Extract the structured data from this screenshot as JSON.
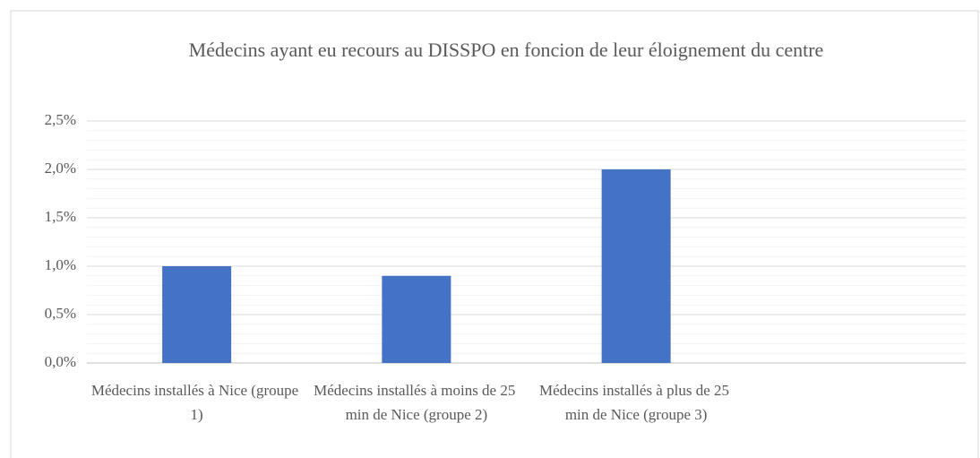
{
  "chart_data": {
    "type": "bar",
    "title": "Médecins ayant eu recours au DISSPO en foncion de leur éloignement du centre",
    "categories": [
      "Médecins installés à Nice (groupe 1)",
      "Médecins installés à moins de 25 min de Nice (groupe 2)",
      "Médecins installés à plus de 25 min de Nice (groupe 3)",
      null
    ],
    "values": [
      1.0,
      0.9,
      2.0,
      null
    ],
    "color": "#4472c4",
    "ylim": [
      0,
      2.5
    ],
    "yticks": [
      {
        "value": 0,
        "label": "0,0%"
      },
      {
        "value": 0.5,
        "label": "0,5%"
      },
      {
        "value": 1.0,
        "label": "1,0%"
      },
      {
        "value": 1.5,
        "label": "1,5%"
      },
      {
        "value": 2.0,
        "label": "2,0%"
      },
      {
        "value": 2.5,
        "label": "2,5%"
      }
    ],
    "minor_yticks": [
      0.1,
      0.2,
      0.3,
      0.4,
      0.6,
      0.7,
      0.8,
      0.9,
      1.1,
      1.2,
      1.3,
      1.4,
      1.6,
      1.7,
      1.8,
      1.9,
      2.1,
      2.2,
      2.3,
      2.4
    ],
    "grid": true
  }
}
